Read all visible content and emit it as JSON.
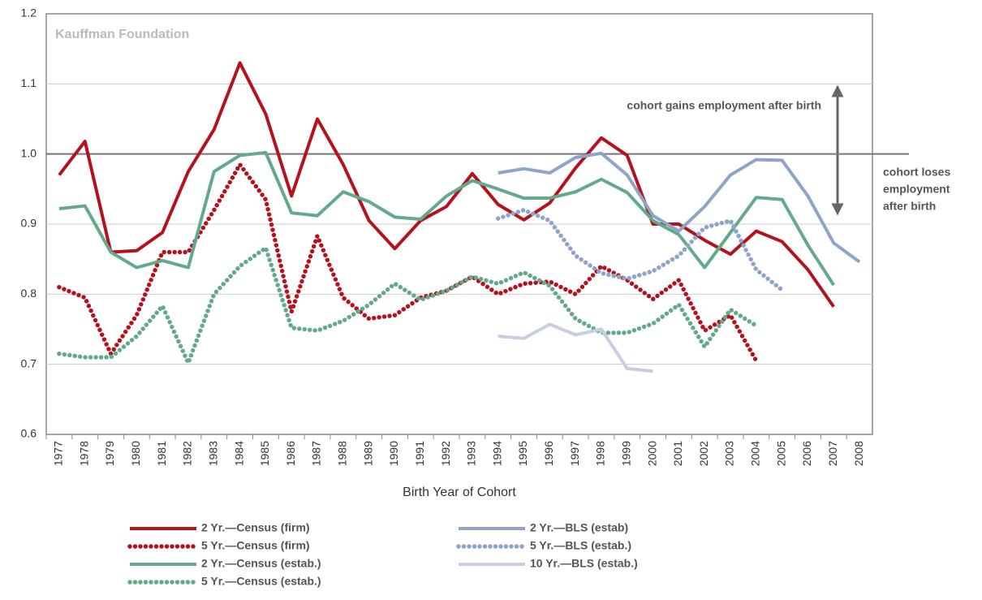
{
  "chart_data": {
    "type": "line",
    "watermark": "Kauffman Foundation",
    "x_label": "Birth Year of Cohort",
    "annotations": [
      "cohort gains employment after birth",
      [
        "cohort  loses",
        "employment",
        "after birth"
      ]
    ],
    "categories": [
      "1977",
      "1978",
      "1979",
      "1980",
      "1981",
      "1982",
      "1983",
      "1984",
      "1985",
      "1986",
      "1987",
      "1988",
      "1989",
      "1990",
      "1991",
      "1992",
      "1993",
      "1994",
      "1995",
      "1996",
      "1997",
      "1998",
      "1999",
      "2000",
      "2001",
      "2002",
      "2003",
      "2004",
      "2005",
      "2006",
      "2007",
      "2008"
    ],
    "ylim": [
      0.6,
      1.2
    ],
    "yticks": [
      0.6,
      0.7,
      0.8,
      0.9,
      {
        "value": 1,
        "label": "1.0"
      },
      1.1,
      1.2
    ],
    "reference_line": 1,
    "grid": true,
    "series": [
      {
        "name": "2 Yr.—Census (firm)",
        "color": "#b3131d",
        "style": "solid",
        "values": [
          0.97,
          1.018,
          0.86,
          0.862,
          0.888,
          0.975,
          1.035,
          1.13,
          1.057,
          0.94,
          1.05,
          0.985,
          0.905,
          0.865,
          0.905,
          0.925,
          0.972,
          0.928,
          0.906,
          0.93,
          0.98,
          1.023,
          0.998,
          0.9,
          0.9,
          0.877,
          0.857,
          0.89,
          0.875,
          0.835,
          0.782,
          null
        ]
      },
      {
        "name": "5 Yr.—Census (firm)",
        "color": "#b3131d",
        "style": "dotted",
        "values": [
          0.81,
          0.795,
          0.715,
          0.77,
          0.86,
          0.86,
          0.92,
          0.985,
          0.935,
          0.775,
          0.883,
          0.795,
          0.765,
          0.77,
          0.795,
          0.805,
          0.825,
          0.8,
          0.815,
          0.818,
          0.8,
          0.84,
          0.82,
          0.793,
          0.82,
          0.748,
          0.77,
          0.705,
          null,
          null,
          null,
          null
        ]
      },
      {
        "name": "2 Yr.—Census (estab.)",
        "color": "#63a98c",
        "style": "solid",
        "values": [
          0.922,
          0.926,
          0.86,
          0.838,
          0.848,
          0.838,
          0.975,
          0.998,
          1.002,
          0.916,
          0.912,
          0.946,
          0.932,
          0.91,
          0.907,
          0.94,
          0.962,
          0.95,
          0.937,
          0.937,
          0.946,
          0.964,
          0.945,
          0.905,
          0.885,
          0.838,
          0.888,
          0.938,
          0.935,
          0.87,
          0.813,
          null
        ]
      },
      {
        "name": "5 Yr.—Census (estab.)",
        "color": "#63a98c",
        "style": "dotted",
        "values": [
          0.715,
          0.71,
          0.71,
          0.74,
          0.783,
          0.702,
          0.8,
          0.84,
          0.866,
          0.752,
          0.748,
          0.762,
          0.785,
          0.815,
          0.792,
          0.805,
          0.825,
          0.815,
          0.831,
          0.812,
          0.765,
          0.745,
          0.745,
          0.758,
          0.785,
          0.725,
          0.778,
          0.755,
          null,
          null,
          null,
          null
        ]
      },
      {
        "name": "2 Yr.—BLS (estab)",
        "color": "#8fa4c9",
        "style": "solid",
        "values": [
          null,
          null,
          null,
          null,
          null,
          null,
          null,
          null,
          null,
          null,
          null,
          null,
          null,
          null,
          null,
          null,
          null,
          0.973,
          0.979,
          0.973,
          0.995,
          1.001,
          0.97,
          0.912,
          0.89,
          0.925,
          0.97,
          0.992,
          0.991,
          0.94,
          0.873,
          0.846
        ]
      },
      {
        "name": "5 Yr.—BLS (estab.)",
        "color": "#8fa4c9",
        "style": "dotted",
        "values": [
          null,
          null,
          null,
          null,
          null,
          null,
          null,
          null,
          null,
          null,
          null,
          null,
          null,
          null,
          null,
          null,
          null,
          0.908,
          0.92,
          0.905,
          0.855,
          0.83,
          0.822,
          0.833,
          0.855,
          0.895,
          0.905,
          0.835,
          0.806,
          null,
          null,
          null
        ]
      },
      {
        "name": "10 Yr.—BLS (estab.)",
        "color": "#c5cee2",
        "style": "solid",
        "values": [
          null,
          null,
          null,
          null,
          null,
          null,
          null,
          null,
          null,
          null,
          null,
          null,
          null,
          null,
          null,
          null,
          null,
          0.74,
          0.737,
          0.757,
          0.742,
          0.75,
          0.694,
          0.69,
          null,
          null,
          null,
          null,
          null,
          null,
          null,
          null
        ]
      }
    ]
  }
}
